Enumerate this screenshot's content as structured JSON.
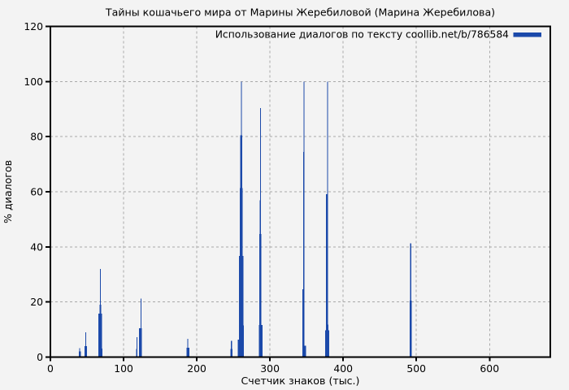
{
  "page": {
    "background": "#f3f3f3",
    "text_color": "#000000"
  },
  "chart_data": {
    "type": "bar",
    "title": "Тайны кошачьего мира от Марины Жеребиловой (Марина Жеребилова)",
    "xlabel": "Счетчик знаков (тыс.)",
    "ylabel": "% диалогов",
    "legend": {
      "label": "Использование диалогов по тексту coollib.net/b/786584",
      "position": "top-right-inside"
    },
    "bar_color": "#1b49aa",
    "grid": true,
    "grid_color": "#a9a9a9",
    "xlim": [
      0,
      683
    ],
    "ylim": [
      0,
      120
    ],
    "xticks": [
      0,
      100,
      200,
      300,
      400,
      500,
      600
    ],
    "yticks": [
      0,
      20,
      40,
      60,
      80,
      100,
      120
    ],
    "series": [
      {
        "name": "Использование диалогов по тексту coollib.net/b/786584",
        "spikes_format": [
          "x_thousand_chars",
          "width_thousand_chars",
          "percent_dialogs"
        ],
        "spikes": [
          [
            40.0,
            2.8,
            2.1
          ],
          [
            40.0,
            1.2,
            3.3
          ],
          [
            48.4,
            3.3,
            4.0
          ],
          [
            48.5,
            1.2,
            9.0
          ],
          [
            67.9,
            4.8,
            15.8
          ],
          [
            68.3,
            2.6,
            19.0
          ],
          [
            68.2,
            1.2,
            32.0
          ],
          [
            70.4,
            1.8,
            3.1
          ],
          [
            118.0,
            1.8,
            3.0
          ],
          [
            118.1,
            1.2,
            7.2
          ],
          [
            123.1,
            3.6,
            10.4
          ],
          [
            123.7,
            1.2,
            21.2
          ],
          [
            187.8,
            4.0,
            3.4
          ],
          [
            187.8,
            1.2,
            6.7
          ],
          [
            247.4,
            3.2,
            3.0
          ],
          [
            247.4,
            1.2,
            5.9
          ],
          [
            257.8,
            3.2,
            6.3
          ],
          [
            260.7,
            5.9,
            36.7
          ],
          [
            260.7,
            4.4,
            61.3
          ],
          [
            260.6,
            2.7,
            80.5
          ],
          [
            261.1,
            1.2,
            100.0
          ],
          [
            263.3,
            2.2,
            11.5
          ],
          [
            287.2,
            4.9,
            11.6
          ],
          [
            286.9,
            2.6,
            44.6
          ],
          [
            287.0,
            1.6,
            56.9
          ],
          [
            287.0,
            1.2,
            90.4
          ],
          [
            346.6,
            5.1,
            4.2
          ],
          [
            345.6,
            2.3,
            24.6
          ],
          [
            346.1,
            1.8,
            74.4
          ],
          [
            346.7,
            1.2,
            100.0
          ],
          [
            378.2,
            5.2,
            9.8
          ],
          [
            378.3,
            3.3,
            11.8
          ],
          [
            377.9,
            2.9,
            59.1
          ],
          [
            378.5,
            1.2,
            100.0
          ],
          [
            492.3,
            2.6,
            20.5
          ],
          [
            492.3,
            1.2,
            41.3
          ]
        ]
      }
    ]
  }
}
